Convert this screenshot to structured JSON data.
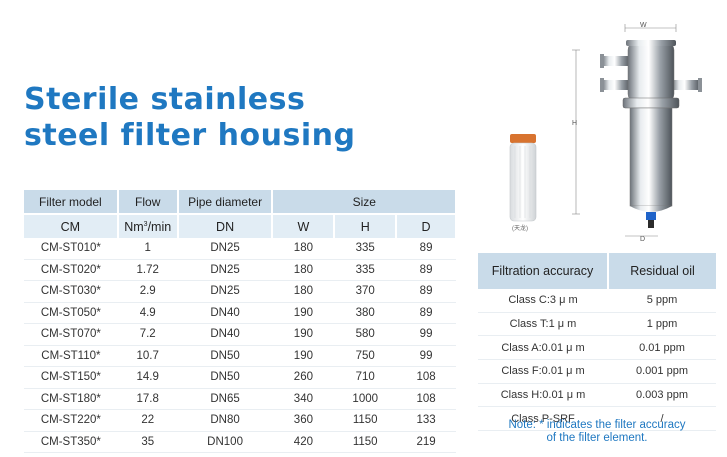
{
  "title": {
    "line1": "Sterile stainless",
    "line2": "steel filter housing"
  },
  "spec_table": {
    "headers": [
      "Filter model",
      "Flow",
      "Pipe diameter",
      "Size"
    ],
    "units": [
      "CM",
      "Nm³/min",
      "DN",
      "W",
      "H",
      "D"
    ],
    "rows": [
      [
        "CM-ST010*",
        "1",
        "DN25",
        "180",
        "335",
        "89"
      ],
      [
        "CM-ST020*",
        "1.72",
        "DN25",
        "180",
        "335",
        "89"
      ],
      [
        "CM-ST030*",
        "2.9",
        "DN25",
        "180",
        "370",
        "89"
      ],
      [
        "CM-ST050*",
        "4.9",
        "DN40",
        "190",
        "380",
        "89"
      ],
      [
        "CM-ST070*",
        "7.2",
        "DN40",
        "190",
        "580",
        "99"
      ],
      [
        "CM-ST110*",
        "10.7",
        "DN50",
        "190",
        "750",
        "99"
      ],
      [
        "CM-ST150*",
        "14.9",
        "DN50",
        "260",
        "710",
        "108"
      ],
      [
        "CM-ST180*",
        "17.8",
        "DN65",
        "340",
        "1000",
        "108"
      ],
      [
        "CM-ST220*",
        "22",
        "DN80",
        "360",
        "1150",
        "133"
      ],
      [
        "CM-ST350*",
        "35",
        "DN100",
        "420",
        "1150",
        "219"
      ]
    ]
  },
  "filtration_table": {
    "headers": [
      "Filtration accuracy",
      "Residual oil"
    ],
    "rows": [
      [
        "Class C:3 μ m",
        "5 ppm"
      ],
      [
        "Class T:1 μ m",
        "1 ppm"
      ],
      [
        "Class A:0.01 μ m",
        "0.01 ppm"
      ],
      [
        "Class F:0.01 μ m",
        "0.001 ppm"
      ],
      [
        "Class H:0.01 μ m",
        "0.003 ppm"
      ],
      [
        "Class P-SRF",
        "/"
      ]
    ]
  },
  "note": {
    "line1": "Note: * indicates the filter accuracy",
    "line2": "of the filter element."
  },
  "product_image": {
    "cartridge_label": "(天龙)",
    "dim_w": "W",
    "dim_h": "H",
    "dim_d": "D"
  },
  "colors": {
    "title": "#1f78c1",
    "header_dark": "#c9dbe9",
    "header_light": "#e2edf5"
  }
}
